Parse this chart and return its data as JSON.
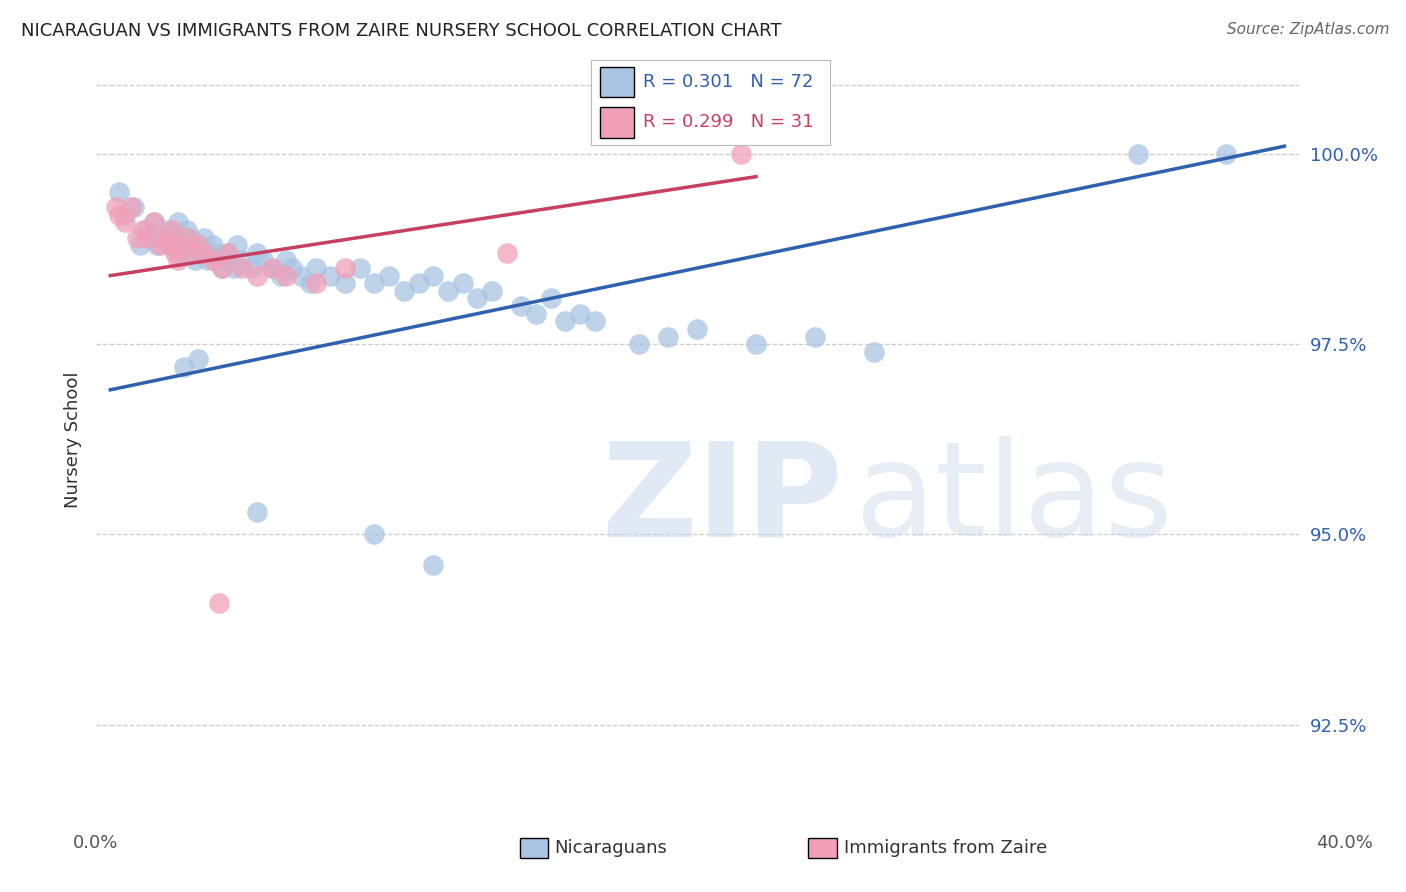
{
  "title": "NICARAGUAN VS IMMIGRANTS FROM ZAIRE NURSERY SCHOOL CORRELATION CHART",
  "source": "Source: ZipAtlas.com",
  "ylabel": "Nursery School",
  "watermark": "ZIPatlas",
  "blue_R": 0.301,
  "blue_N": 72,
  "pink_R": 0.299,
  "pink_N": 31,
  "xlim": [
    -0.5,
    40.5
  ],
  "ylim": [
    91.3,
    101.2
  ],
  "yticks": [
    92.5,
    95.0,
    97.5,
    100.0
  ],
  "ytick_labels": [
    "92.5%",
    "95.0%",
    "97.5%",
    "100.0%"
  ],
  "blue_color": "#a8c4e2",
  "blue_line_color": "#3060b0",
  "pink_color": "#f0a0b8",
  "pink_line_color": "#c84060",
  "blue_scatter_x": [
    0.3,
    0.5,
    0.8,
    1.0,
    1.2,
    1.4,
    1.5,
    1.6,
    1.8,
    2.0,
    2.1,
    2.2,
    2.3,
    2.4,
    2.5,
    2.6,
    2.7,
    2.8,
    2.9,
    3.0,
    3.1,
    3.2,
    3.3,
    3.5,
    3.6,
    3.8,
    3.9,
    4.0,
    4.2,
    4.3,
    4.5,
    4.8,
    5.0,
    5.2,
    5.5,
    5.8,
    6.0,
    6.2,
    6.5,
    6.8,
    7.0,
    7.5,
    8.0,
    8.5,
    9.0,
    9.5,
    10.0,
    10.5,
    11.0,
    11.5,
    12.0,
    12.5,
    13.0,
    14.0,
    14.5,
    15.0,
    15.5,
    16.0,
    16.5,
    18.0,
    19.0,
    20.0,
    22.0,
    24.0,
    26.0,
    2.5,
    3.0,
    35.0,
    38.0,
    5.0,
    9.0,
    11.0
  ],
  "blue_scatter_y": [
    99.5,
    99.2,
    99.3,
    98.8,
    99.0,
    98.9,
    99.1,
    98.8,
    98.9,
    99.0,
    98.8,
    98.9,
    99.1,
    98.7,
    98.8,
    99.0,
    98.9,
    98.7,
    98.6,
    98.8,
    98.7,
    98.9,
    98.6,
    98.8,
    98.7,
    98.5,
    98.6,
    98.7,
    98.5,
    98.8,
    98.6,
    98.5,
    98.7,
    98.6,
    98.5,
    98.4,
    98.6,
    98.5,
    98.4,
    98.3,
    98.5,
    98.4,
    98.3,
    98.5,
    98.3,
    98.4,
    98.2,
    98.3,
    98.4,
    98.2,
    98.3,
    98.1,
    98.2,
    98.0,
    97.9,
    98.1,
    97.8,
    97.9,
    97.8,
    97.5,
    97.6,
    97.7,
    97.5,
    97.6,
    97.4,
    97.2,
    97.3,
    100.0,
    100.0,
    95.3,
    95.0,
    94.6
  ],
  "pink_scatter_x": [
    0.2,
    0.3,
    0.5,
    0.7,
    0.9,
    1.1,
    1.3,
    1.5,
    1.7,
    1.9,
    2.0,
    2.1,
    2.2,
    2.4,
    2.6,
    2.8,
    3.0,
    3.2,
    3.5,
    3.8,
    4.0,
    4.5,
    5.0,
    5.5,
    6.0,
    7.0,
    8.0,
    13.5,
    21.5,
    2.3,
    3.7
  ],
  "pink_scatter_y": [
    99.3,
    99.2,
    99.1,
    99.3,
    98.9,
    99.0,
    98.9,
    99.1,
    98.8,
    98.9,
    98.8,
    99.0,
    98.7,
    98.8,
    98.9,
    98.7,
    98.8,
    98.7,
    98.6,
    98.5,
    98.7,
    98.5,
    98.4,
    98.5,
    98.4,
    98.3,
    98.5,
    98.7,
    100.0,
    98.6,
    94.1
  ],
  "blue_trendline_x": [
    0.0,
    40.0
  ],
  "blue_trendline_y": [
    96.9,
    100.1
  ],
  "pink_trendline_x": [
    0.0,
    22.0
  ],
  "pink_trendline_y": [
    98.4,
    99.7
  ]
}
